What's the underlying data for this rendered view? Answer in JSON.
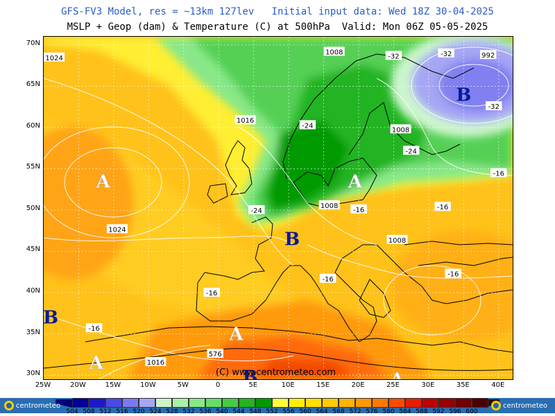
{
  "header": {
    "line1": "GFS-FV3 Model, res = ~13km 127lev   Initial input data: Wed 18Z 30-04-2025",
    "line2": "MSLP + Geop (dam) & Temperature (C) at 500hPa  Valid: Mon 06Z 05-05-2025"
  },
  "axes": {
    "lat_labels": [
      "70N",
      "65N",
      "60N",
      "55N",
      "50N",
      "45N",
      "40N",
      "35N",
      "30N"
    ],
    "lon_labels": [
      "25W",
      "20W",
      "15W",
      "10W",
      "5W",
      "0",
      "5E",
      "10E",
      "15E",
      "20E",
      "25E",
      "30E",
      "35E",
      "40E"
    ]
  },
  "pressure_centers": [
    {
      "letter": "A",
      "lon": -16.5,
      "lat": 53.5
    },
    {
      "letter": "A",
      "lon": 19.5,
      "lat": 53.5
    },
    {
      "letter": "A",
      "lon": 2.5,
      "lat": 35.0
    },
    {
      "letter": "A",
      "lon": -17.5,
      "lat": 31.5
    },
    {
      "letter": "A",
      "lon": 25.5,
      "lat": 29.5
    },
    {
      "letter": "B",
      "lon": 35.0,
      "lat": 64.0
    },
    {
      "letter": "B",
      "lon": 10.5,
      "lat": 46.5
    },
    {
      "letter": "B",
      "lon": -24.0,
      "lat": 37.0
    },
    {
      "letter": "B",
      "lon": 4.5,
      "lat": 29.8
    }
  ],
  "pressure_labels": [
    {
      "text": "1024",
      "lon": -23.5,
      "lat": 68.5
    },
    {
      "text": "1008",
      "lon": 16.5,
      "lat": 69.2
    },
    {
      "text": "992",
      "lon": 38.5,
      "lat": 68.8
    },
    {
      "text": "1016",
      "lon": 3.8,
      "lat": 60.9
    },
    {
      "text": "1008",
      "lon": 26.0,
      "lat": 59.8
    },
    {
      "text": "1008",
      "lon": 15.8,
      "lat": 50.6
    },
    {
      "text": "1008",
      "lon": 25.5,
      "lat": 46.4
    },
    {
      "text": "1024",
      "lon": -14.5,
      "lat": 47.7
    },
    {
      "text": "1016",
      "lon": -9.0,
      "lat": 31.6
    },
    {
      "text": "576",
      "lon": -0.5,
      "lat": 32.6
    }
  ],
  "temperature_labels": [
    {
      "text": "-32",
      "lon": 25.0,
      "lat": 68.7
    },
    {
      "text": "-32",
      "lon": 32.5,
      "lat": 69.0
    },
    {
      "text": "-32",
      "lon": 39.3,
      "lat": 62.6
    },
    {
      "text": "-24",
      "lon": 12.7,
      "lat": 60.3
    },
    {
      "text": "-24",
      "lon": 27.5,
      "lat": 57.2
    },
    {
      "text": "-24",
      "lon": 5.4,
      "lat": 50.0
    },
    {
      "text": "-16",
      "lon": 20.0,
      "lat": 50.1
    },
    {
      "text": "-16",
      "lon": 32.0,
      "lat": 50.4
    },
    {
      "text": "-16",
      "lon": 15.6,
      "lat": 41.7
    },
    {
      "text": "-16",
      "lon": 33.5,
      "lat": 42.3
    },
    {
      "text": "-16",
      "lon": -1.0,
      "lat": 40.0
    },
    {
      "text": "-16",
      "lon": -17.8,
      "lat": 35.7
    },
    {
      "text": "-16",
      "lon": 40.0,
      "lat": 54.5
    }
  ],
  "copyright": "(C) www.centrometeo.com",
  "colorbar": {
    "labels": [
      "504",
      "508",
      "512",
      "516",
      "520",
      "524",
      "528",
      "532",
      "536",
      "540",
      "544",
      "548",
      "552",
      "556",
      "560",
      "564",
      "568",
      "572",
      "576",
      "580",
      "584",
      "588",
      "592",
      "596",
      "600"
    ],
    "colors": [
      "#00009a",
      "#1a1acc",
      "#4a4ae6",
      "#7a7af0",
      "#a6a6f5",
      "#ccf5cc",
      "#a8f0a8",
      "#88e888",
      "#66dd66",
      "#44cc44",
      "#22b422",
      "#009a00",
      "#fffc3a",
      "#fff200",
      "#ffe000",
      "#ffcc00",
      "#ffb400",
      "#ff9a00",
      "#ff7a00",
      "#ff4a00",
      "#e61e00",
      "#c00000",
      "#960000",
      "#700000",
      "#4a0000"
    ],
    "logo_text": "centrometeo"
  }
}
